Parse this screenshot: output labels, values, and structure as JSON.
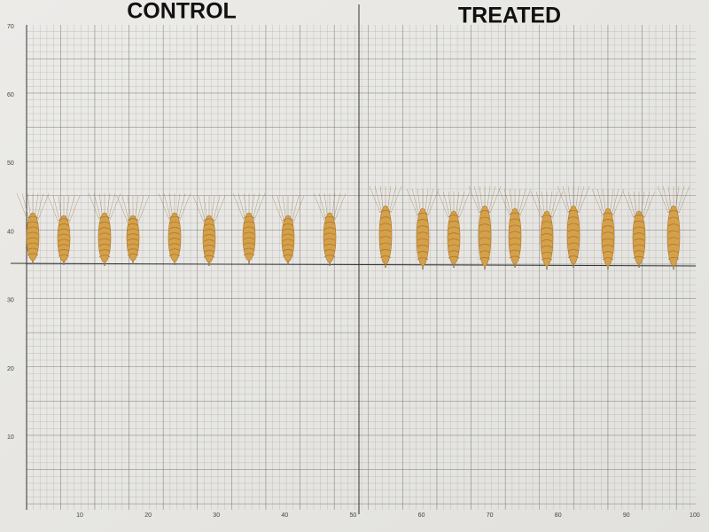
{
  "header": {
    "left_title": "CONTROL",
    "right_title": "TREATED"
  },
  "y_labels": [
    "70",
    "60",
    "50",
    "40",
    "30",
    "20",
    "10"
  ],
  "x_labels": [
    "10",
    "20",
    "30",
    "40",
    "50",
    "60",
    "70",
    "80",
    "90",
    "100"
  ]
}
